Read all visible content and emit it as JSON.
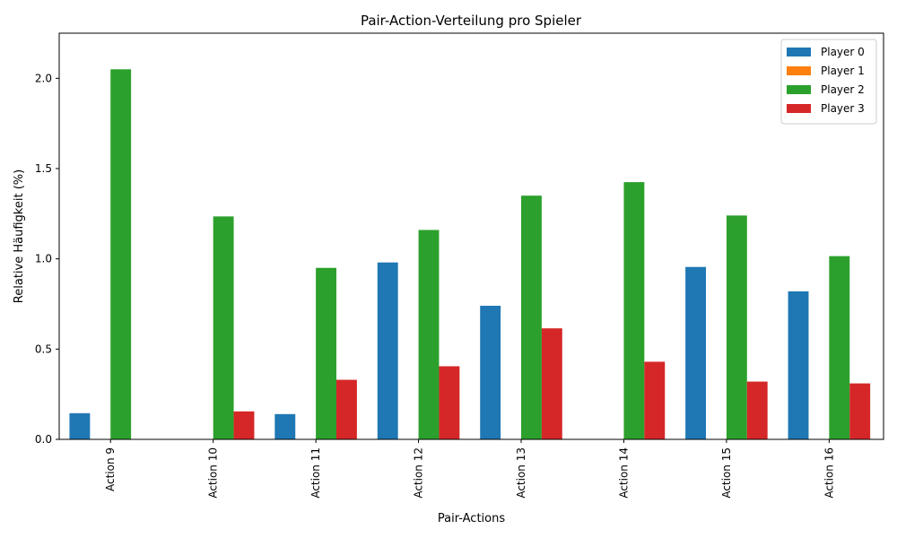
{
  "chart_data": {
    "type": "bar",
    "title": "Pair-Action-Verteilung pro Spieler",
    "xlabel": "Pair-Actions",
    "ylabel": "Relative Häufigkeit (%)",
    "ylim": [
      0,
      2.25
    ],
    "yticks": [
      0.0,
      0.5,
      1.0,
      1.5,
      2.0
    ],
    "ytick_labels": [
      "0.0",
      "0.5",
      "1.0",
      "1.5",
      "2.0"
    ],
    "grid": false,
    "legend_position": "top-right",
    "categories": [
      "Action 9",
      "Action 10",
      "Action 11",
      "Action 12",
      "Action 13",
      "Action 14",
      "Action 15",
      "Action 16"
    ],
    "series": [
      {
        "name": "Player 0",
        "color": "#1f77b4",
        "values": [
          0.145,
          0,
          0.14,
          0.98,
          0.74,
          0,
          0.955,
          0.82
        ]
      },
      {
        "name": "Player 1",
        "color": "#ff7f0e",
        "values": [
          0,
          0,
          0,
          0,
          0,
          0,
          0,
          0
        ]
      },
      {
        "name": "Player 2",
        "color": "#2ca02c",
        "values": [
          2.05,
          1.235,
          0.95,
          1.16,
          1.35,
          1.425,
          1.24,
          1.015
        ]
      },
      {
        "name": "Player 3",
        "color": "#d62728",
        "values": [
          0,
          0.155,
          0.33,
          0.405,
          0.615,
          0.43,
          0.32,
          0.31
        ]
      }
    ]
  }
}
